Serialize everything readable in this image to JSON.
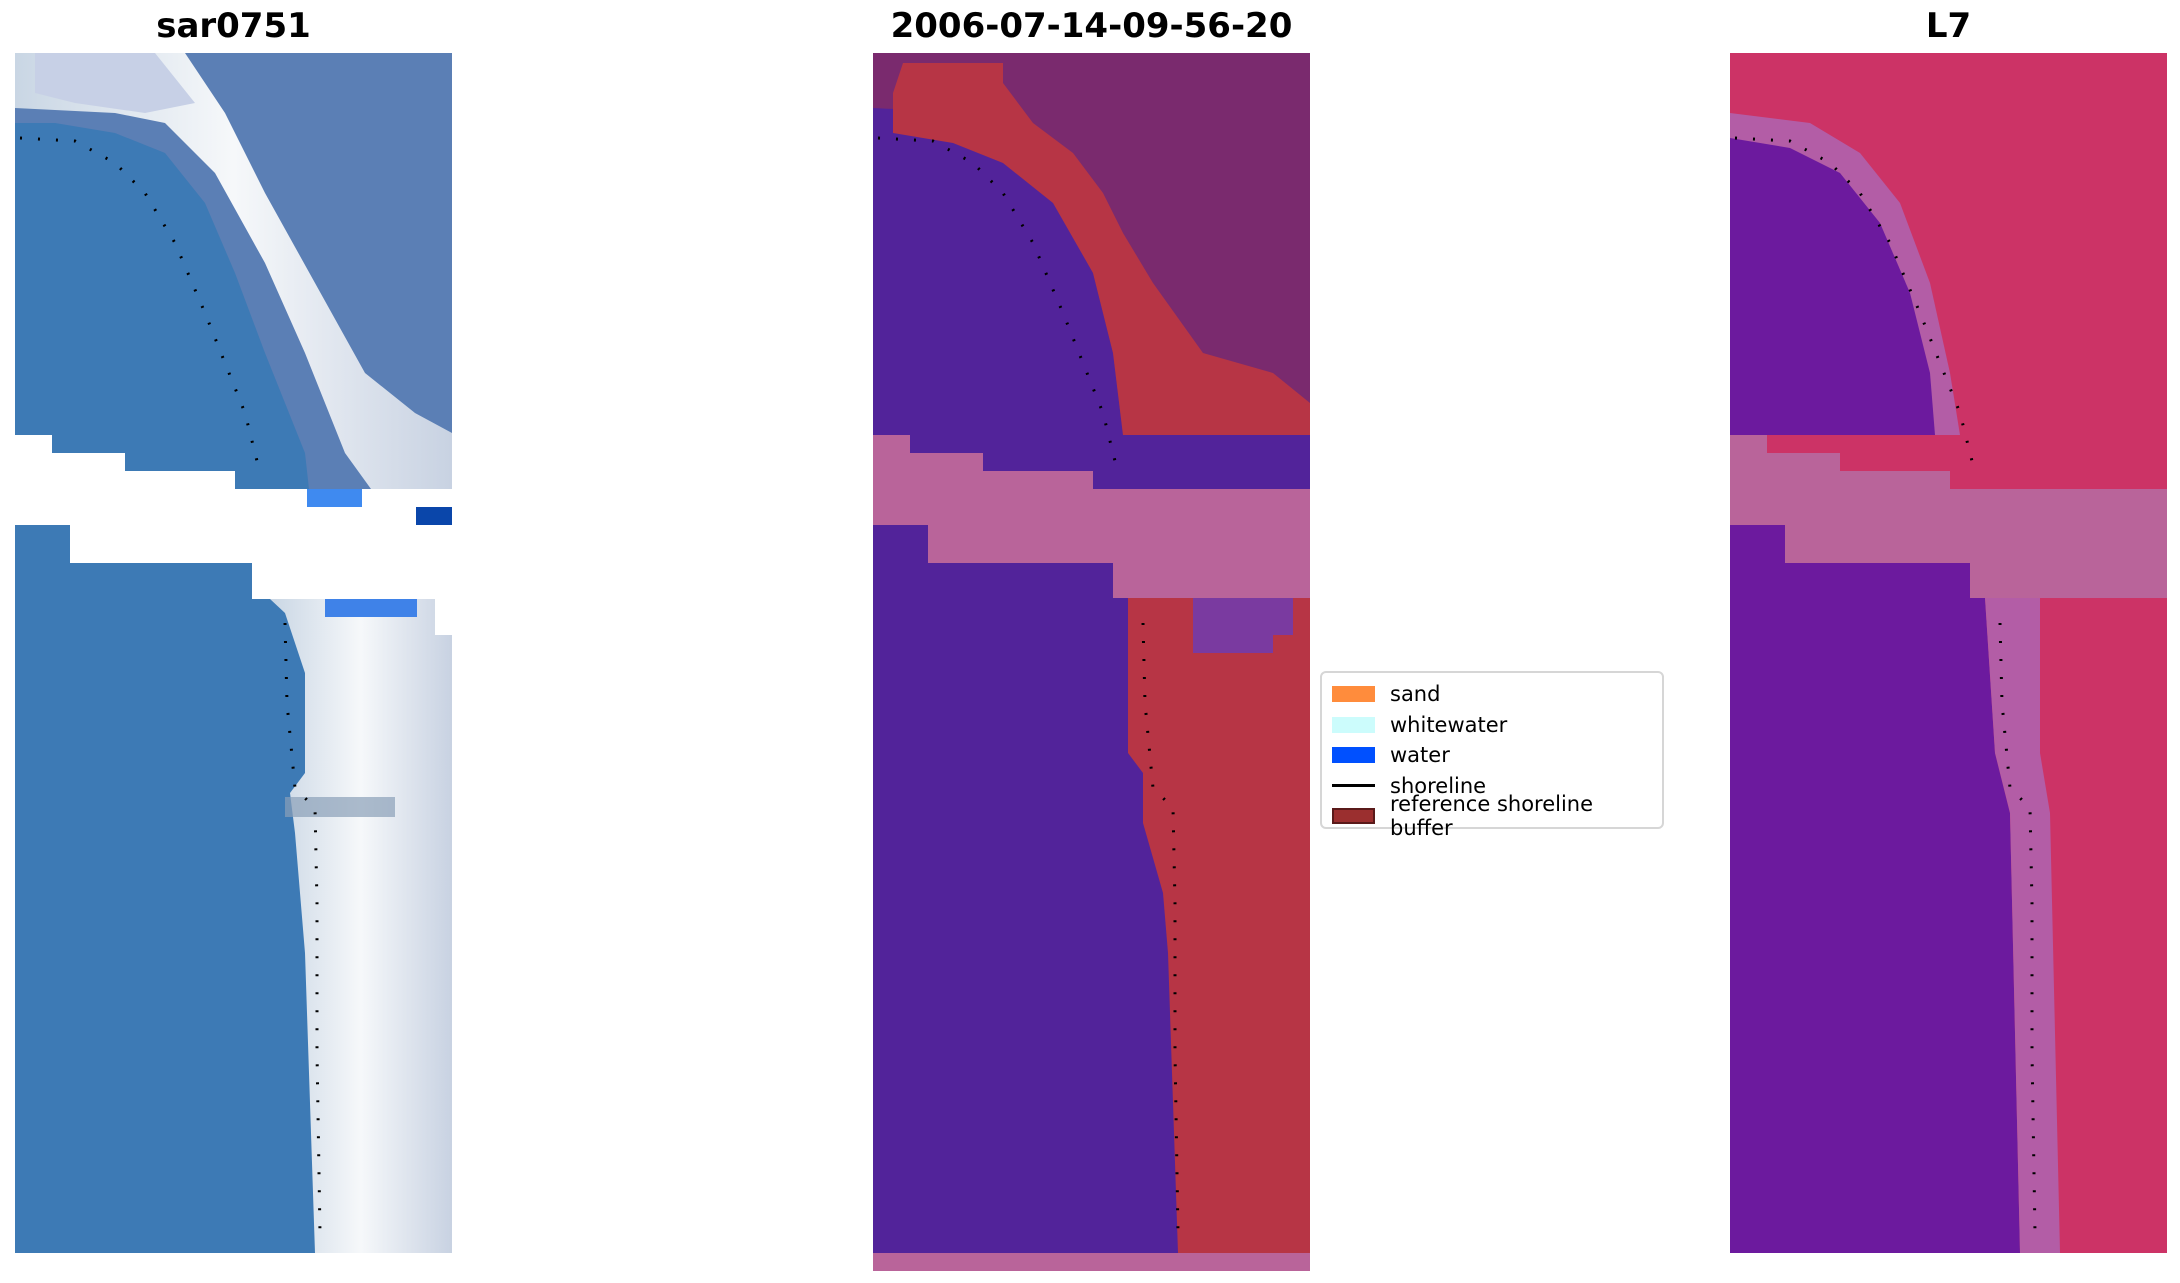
{
  "panels": [
    {
      "id": "rgb",
      "title": "sar0751"
    },
    {
      "id": "classified",
      "title": "2006-07-14-09-56-20"
    },
    {
      "id": "index",
      "title": "L7"
    }
  ],
  "legend": {
    "items": [
      {
        "label": "sand",
        "color": "#ff8c3c",
        "kind": "patch"
      },
      {
        "label": "whitewater",
        "color": "#ccfcfc",
        "kind": "patch"
      },
      {
        "label": "water",
        "color": "#0050ff",
        "kind": "patch"
      },
      {
        "label": "shoreline",
        "color": "#000000",
        "kind": "line"
      },
      {
        "label": "reference shoreline buffer",
        "color": "#9b2f2f",
        "kind": "patch"
      }
    ]
  },
  "colors": {
    "rgb_water": "#3d7ab5",
    "rgb_surf": "#e6ecf2",
    "rgb_land": "#4f6ea3",
    "rgb_nodata": "#ffffff",
    "class_water": "#52239a",
    "class_buffer": "#b73545",
    "class_land": "#7a2a6e",
    "class_nodata": "#b9649a",
    "index_water": "#6c1a9e",
    "index_transition": "#b35da6",
    "index_land": "#cc3366",
    "index_nodata": "#b9649a"
  }
}
